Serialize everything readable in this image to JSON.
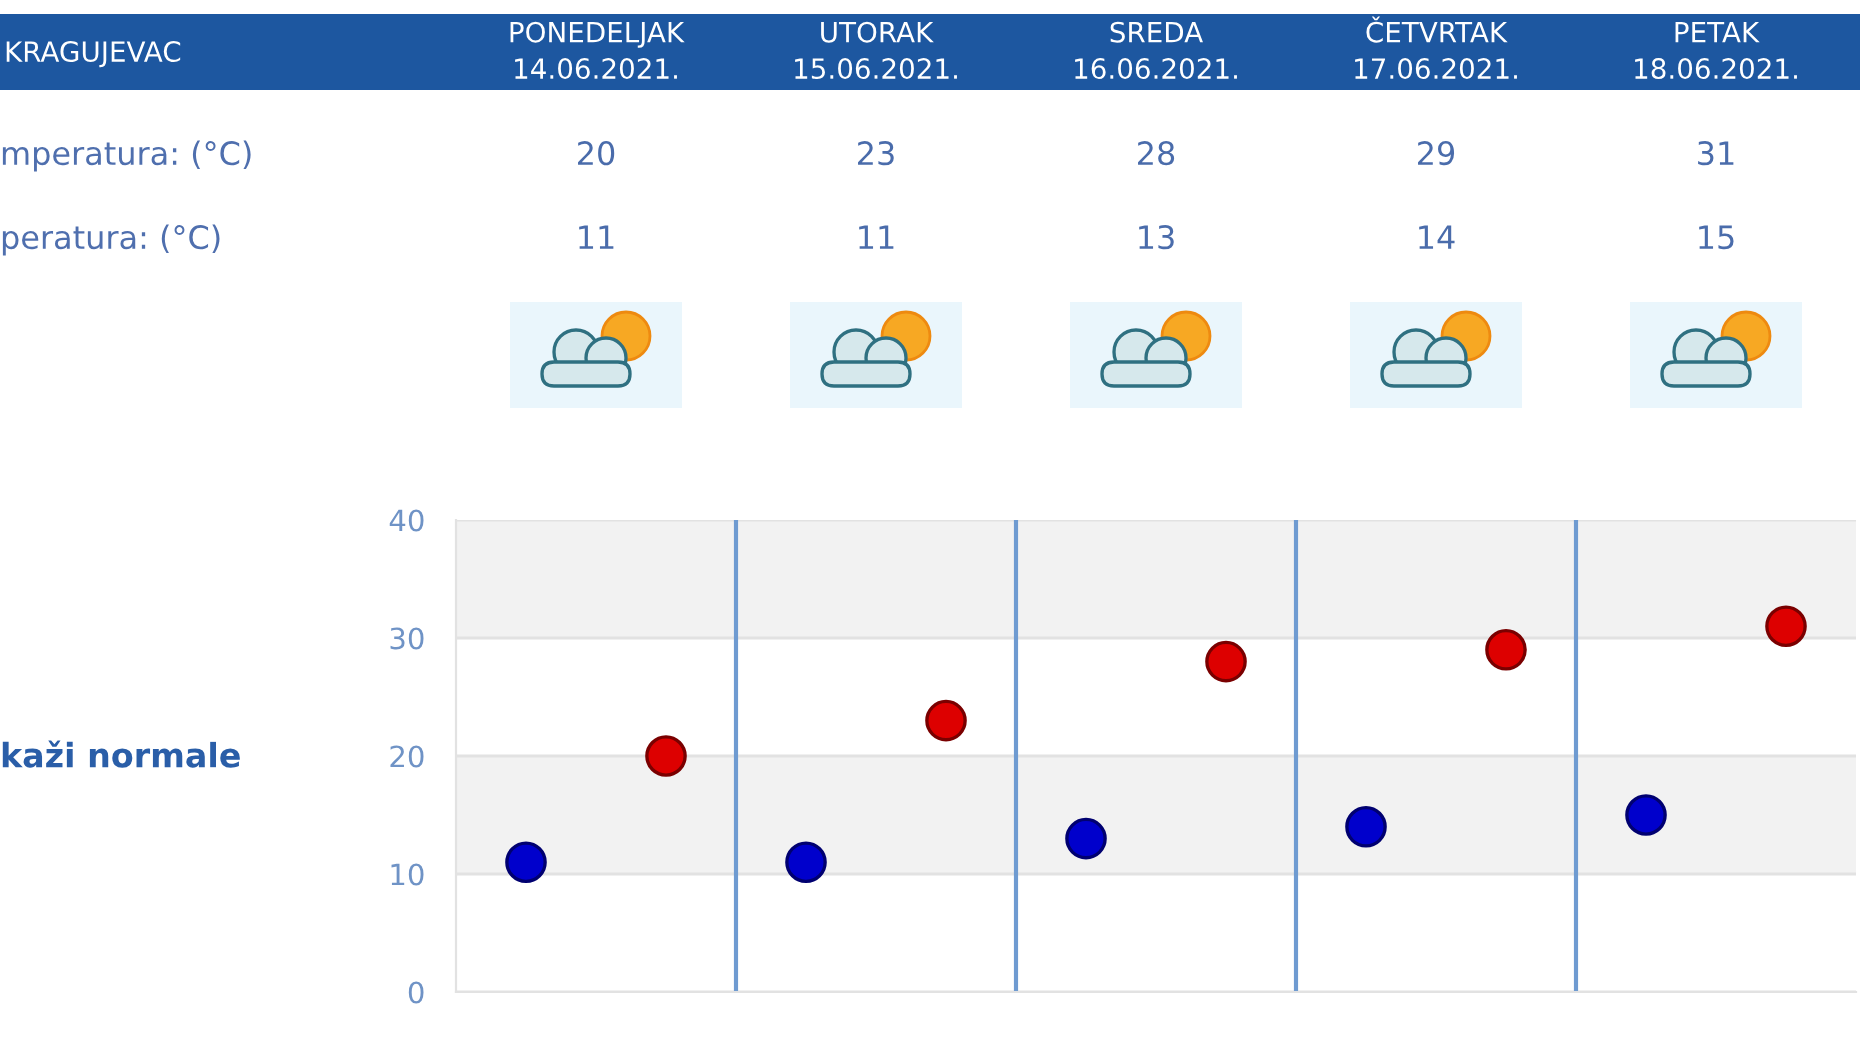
{
  "chart_data": [
    {
      "type": "other",
      "title": "KRAGUJEVAC",
      "categories": [
        "PONEDELJAK\n14.06.2021.",
        "UTORAK\n15.06.2021.",
        "SREDA\n16.06.2021.",
        "ČETVRTAK\n17.06.2021.",
        "PETAK\n18.06.2021."
      ],
      "series": [
        {
          "color": "#4a6cab",
          "values": [
            20,
            23,
            28,
            29,
            31
          ]
        },
        {
          "color": "#4a6cab",
          "values": [
            11,
            11,
            13,
            14,
            15
          ]
        }
      ],
      "data_labels": true,
      "annotations": [
        "mperatura: (°C)",
        "peratura: (°C)"
      ]
    },
    {
      "type": "scatter",
      "categories": [
        null,
        null,
        null,
        null,
        null
      ],
      "series": [
        {
          "color": "#dd0000",
          "values": [
            20,
            23,
            28,
            29,
            31
          ]
        },
        {
          "color": "#0000cc",
          "values": [
            11,
            11,
            13,
            14,
            15
          ]
        }
      ],
      "marker": "circle",
      "ylim": [
        0,
        40
      ],
      "yticks": [
        0,
        10,
        20,
        30,
        40
      ],
      "grid": true,
      "annotations": [
        "kaži normale"
      ]
    }
  ]
}
